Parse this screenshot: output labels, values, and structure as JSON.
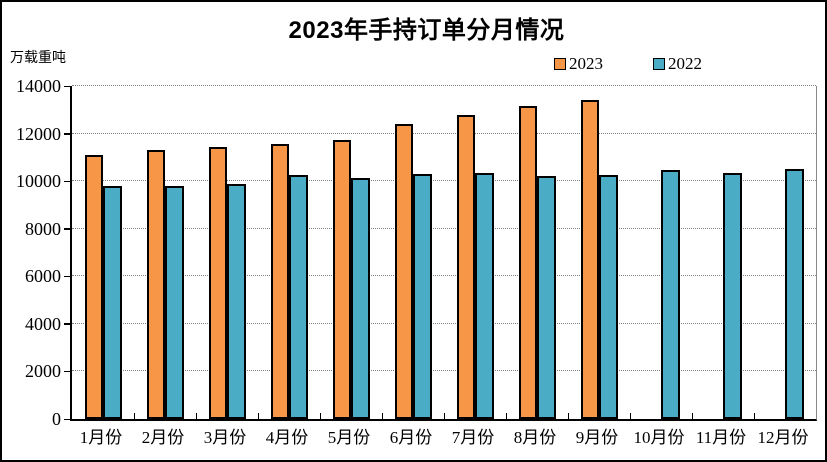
{
  "title": "2023年手持订单分月情况",
  "unit_label": "万载重吨",
  "legend": {
    "items": [
      {
        "label": "2023",
        "color": "#F79646"
      },
      {
        "label": "2022",
        "color": "#4BACC6"
      }
    ]
  },
  "colors": {
    "bar_2023": "#F79646",
    "bar_2022": "#4BACC6",
    "bar_border": "#000000",
    "gridline": "#808080",
    "axis": "#000000",
    "background": "#FFFFFF"
  },
  "chart_data": {
    "type": "bar",
    "title": "2023年手持订单分月情况",
    "ylabel": "万载重吨",
    "categories": [
      "1月份",
      "2月份",
      "3月份",
      "4月份",
      "5月份",
      "6月份",
      "7月份",
      "8月份",
      "9月份",
      "10月份",
      "11月份",
      "12月份"
    ],
    "series": [
      {
        "name": "2023",
        "color": "#F79646",
        "values": [
          11100,
          11300,
          11450,
          11550,
          11750,
          12400,
          12800,
          13150,
          13400,
          null,
          null,
          null
        ]
      },
      {
        "name": "2022",
        "color": "#4BACC6",
        "values": [
          9800,
          9800,
          9900,
          10250,
          10150,
          10300,
          10350,
          10200,
          10250,
          10450,
          10350,
          10500
        ]
      }
    ],
    "ylim": [
      0,
      14000
    ],
    "ytick_step": 2000,
    "yticks": [
      0,
      2000,
      4000,
      6000,
      8000,
      10000,
      12000,
      14000
    ],
    "grid": true,
    "legend_position": "top-right"
  }
}
